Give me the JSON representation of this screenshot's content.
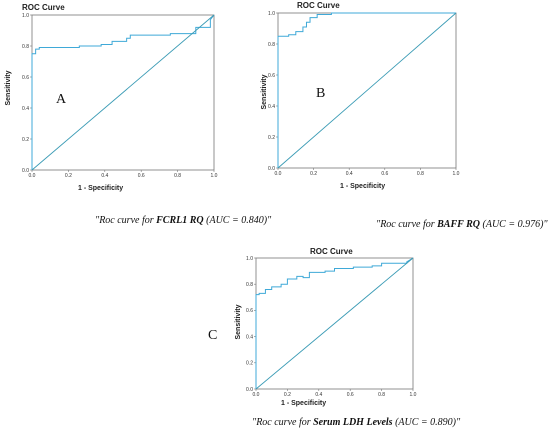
{
  "chart_data": [
    {
      "type": "line",
      "panel_label": "A",
      "title": "ROC Curve",
      "xlabel": "1 - Specificity",
      "ylabel": "Sensitivity",
      "xlim": [
        0,
        1
      ],
      "ylim": [
        0,
        1
      ],
      "xticks": [
        "0.0",
        "0.2",
        "0.4",
        "0.6",
        "0.8",
        "1.0"
      ],
      "yticks": [
        "0.0",
        "0.2",
        "0.4",
        "0.6",
        "0.8",
        "1.0"
      ],
      "grid": false,
      "series": [
        {
          "color": "#3fa9d8",
          "x": [
            0,
            0,
            0.02,
            0.02,
            0.04,
            0.04,
            0.26,
            0.26,
            0.38,
            0.38,
            0.44,
            0.44,
            0.52,
            0.52,
            0.54,
            0.54,
            0.76,
            0.76,
            0.9,
            0.9,
            0.98,
            0.98,
            1.0
          ],
          "y": [
            0,
            0.75,
            0.75,
            0.78,
            0.78,
            0.79,
            0.79,
            0.8,
            0.8,
            0.81,
            0.81,
            0.83,
            0.83,
            0.85,
            0.85,
            0.87,
            0.87,
            0.88,
            0.88,
            0.92,
            0.92,
            0.97,
            1.0
          ]
        },
        {
          "color": "#3a9bb5",
          "x": [
            0,
            1
          ],
          "y": [
            0,
            1
          ]
        }
      ],
      "caption_pre": "\"Roc curve for ",
      "caption_bold": "FCRL1 RQ",
      "caption_post": " (AUC = 0.840)\""
    },
    {
      "type": "line",
      "panel_label": "B",
      "title": "ROC Curve",
      "xlabel": "1 - Specificity",
      "ylabel": "Sensitivity",
      "xlim": [
        0,
        1
      ],
      "ylim": [
        0,
        1
      ],
      "xticks": [
        "0.0",
        "0.2",
        "0.4",
        "0.6",
        "0.8",
        "1.0"
      ],
      "yticks": [
        "0.0",
        "0.2",
        "0.4",
        "0.6",
        "0.8",
        "1.0"
      ],
      "grid": false,
      "series": [
        {
          "color": "#3fa9d8",
          "x": [
            0,
            0,
            0.06,
            0.06,
            0.1,
            0.1,
            0.14,
            0.14,
            0.16,
            0.16,
            0.18,
            0.18,
            0.22,
            0.22,
            0.3,
            0.3,
            0.7,
            0.7,
            1.0
          ],
          "y": [
            0,
            0.85,
            0.85,
            0.86,
            0.86,
            0.88,
            0.88,
            0.91,
            0.91,
            0.94,
            0.94,
            0.97,
            0.97,
            0.99,
            0.99,
            1.0,
            1.0,
            1.0,
            1.0
          ]
        },
        {
          "color": "#3a9bb5",
          "x": [
            0,
            1
          ],
          "y": [
            0,
            1
          ]
        }
      ],
      "caption_pre": "\"Roc curve for ",
      "caption_bold": "BAFF RQ",
      "caption_post": " (AUC = 0.976)\""
    },
    {
      "type": "line",
      "panel_label": "C",
      "title": "ROC Curve",
      "xlabel": "1 - Specificity",
      "ylabel": "Sensitivity",
      "xlim": [
        0,
        1
      ],
      "ylim": [
        0,
        1
      ],
      "xticks": [
        "0.0",
        "0.2",
        "0.4",
        "0.6",
        "0.8",
        "1.0"
      ],
      "yticks": [
        "0.0",
        "0.2",
        "0.4",
        "0.6",
        "0.8",
        "1.0"
      ],
      "grid": false,
      "series": [
        {
          "color": "#3fa9d8",
          "x": [
            0,
            0,
            0.02,
            0.02,
            0.06,
            0.06,
            0.1,
            0.1,
            0.16,
            0.16,
            0.2,
            0.2,
            0.26,
            0.26,
            0.3,
            0.3,
            0.34,
            0.34,
            0.44,
            0.44,
            0.5,
            0.5,
            0.62,
            0.62,
            0.74,
            0.74,
            0.8,
            0.8,
            0.96,
            0.96,
            1.0
          ],
          "y": [
            0,
            0.72,
            0.72,
            0.73,
            0.73,
            0.76,
            0.76,
            0.78,
            0.78,
            0.8,
            0.8,
            0.84,
            0.84,
            0.86,
            0.86,
            0.85,
            0.85,
            0.89,
            0.89,
            0.9,
            0.9,
            0.92,
            0.92,
            0.93,
            0.93,
            0.94,
            0.94,
            0.96,
            0.96,
            0.97,
            1.0
          ]
        },
        {
          "color": "#3a9bb5",
          "x": [
            0,
            1
          ],
          "y": [
            0,
            1
          ]
        }
      ],
      "caption_pre": "\"Roc curve for ",
      "caption_bold": "Serum LDH Levels",
      "caption_post": " (AUC = 0.890)\""
    }
  ]
}
